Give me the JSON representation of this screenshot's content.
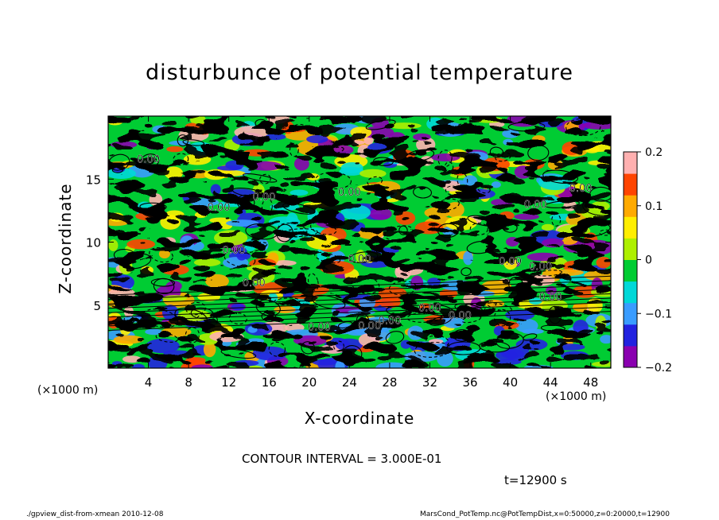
{
  "chart_data": {
    "type": "heatmap",
    "title": "disturbunce of potential temperature",
    "xlabel": "X-coordinate",
    "ylabel": "Z-coordinate",
    "x_unit": "(×1000 m)",
    "xlim": [
      0,
      50
    ],
    "ylim": [
      0,
      20
    ],
    "x_ticks": [
      4,
      8,
      12,
      16,
      20,
      24,
      28,
      32,
      36,
      40,
      44,
      48
    ],
    "y_ticks": [
      5,
      10,
      15
    ],
    "colorbar": {
      "min": -0.2,
      "max": 0.2,
      "ticks": [
        0.2,
        0.1,
        0,
        -0.1,
        -0.2
      ],
      "tick_labels": [
        "0.2",
        "0.1",
        "0",
        "−0.1",
        "−0.2"
      ],
      "colors": [
        "#8a00b0",
        "#2222e0",
        "#3a9cff",
        "#00d8d8",
        "#00cc33",
        "#aef000",
        "#ffee00",
        "#ffaa00",
        "#ff4400",
        "#ffb0b0"
      ]
    },
    "contour_label": "0.00",
    "contour_interval_text": "CONTOUR INTERVAL = 3.000E-01",
    "time_text": "t=12900 s"
  },
  "footer": {
    "left": "./gpview_dist-from-xmean  2010-12-08",
    "right": "MarsCond_PotTemp.nc@PotTempDist,x=0:50000,z=0:20000,t=12900"
  }
}
